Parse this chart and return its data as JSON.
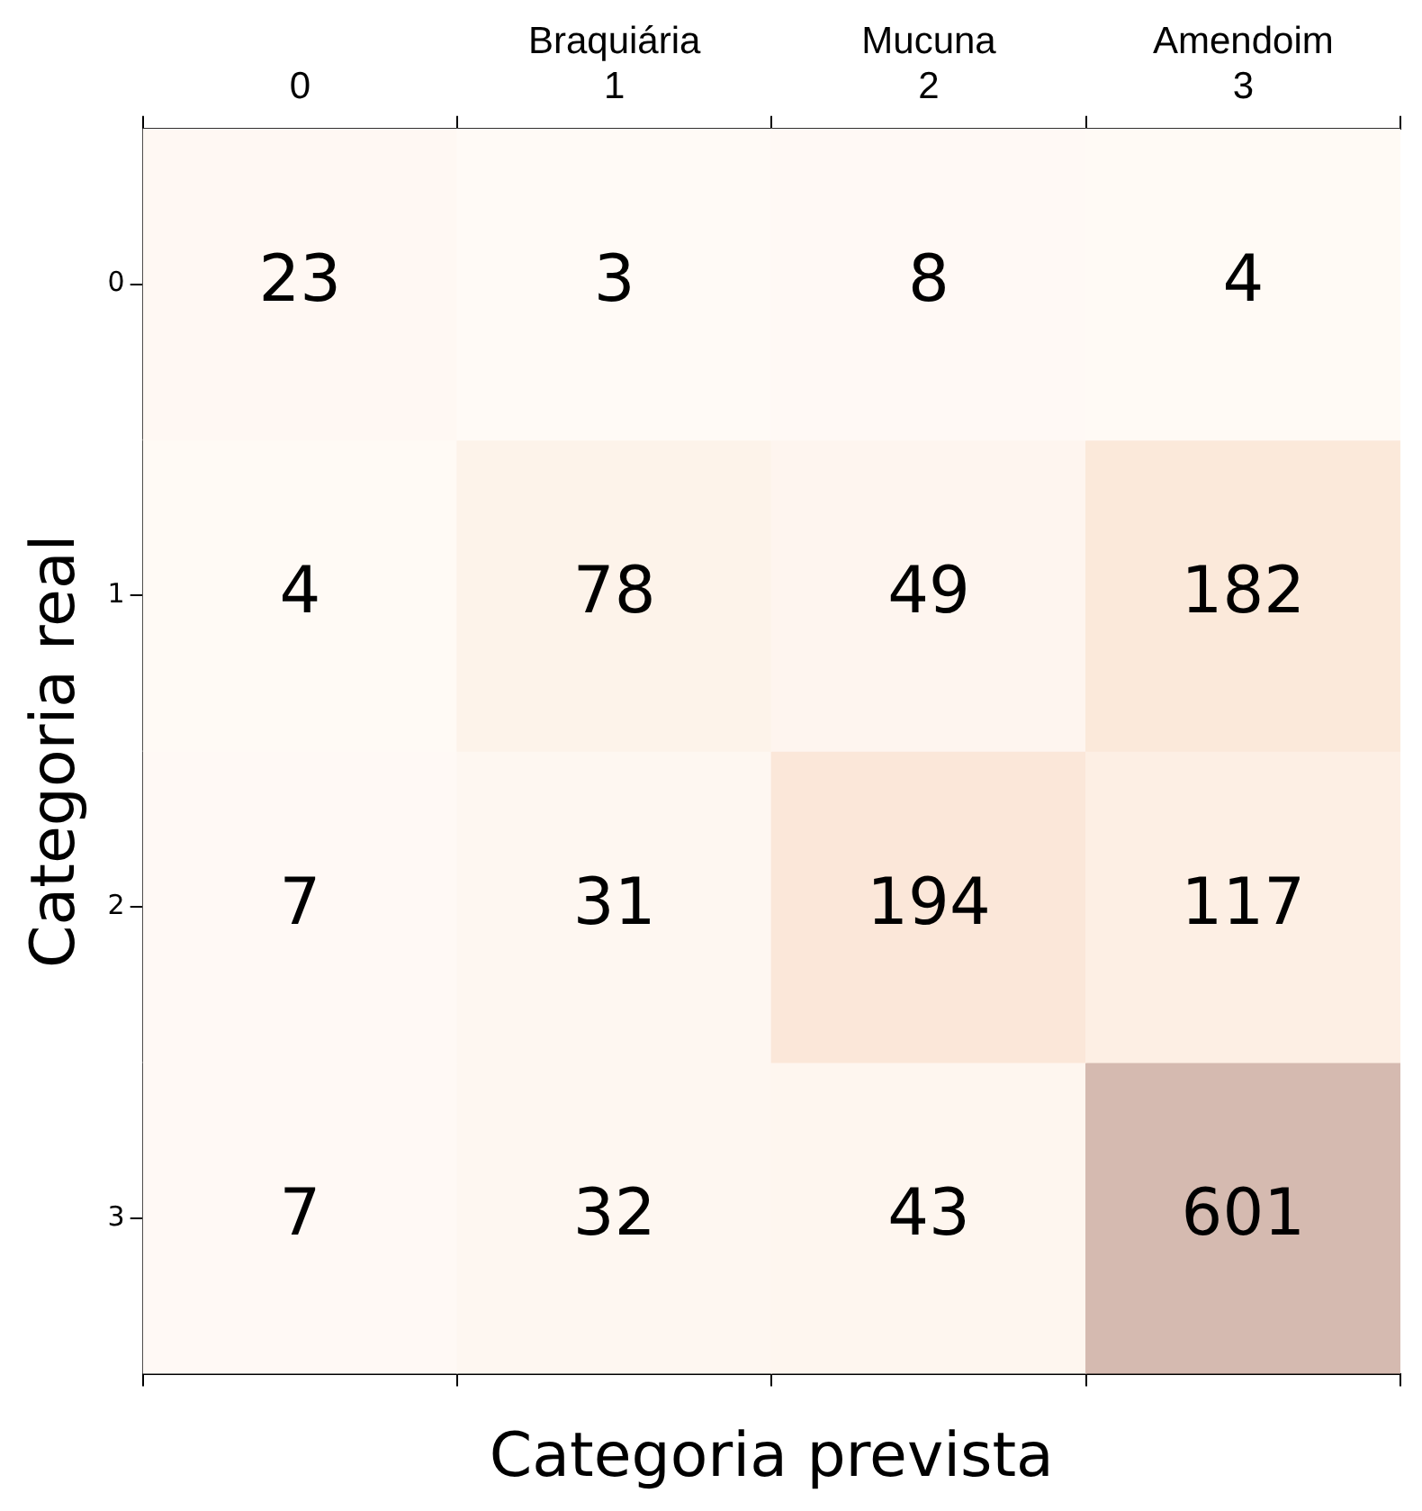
{
  "chart_data": {
    "type": "heatmap",
    "xlabel": "Categoria prevista",
    "ylabel": "Categoria real",
    "categories": [
      "0",
      "Braquiária\n1",
      "Mucuna\n2",
      "Amendoim\n3"
    ],
    "y_categories": [
      "0",
      "1",
      "2",
      "3"
    ],
    "cells": [
      [
        23,
        3,
        8,
        4
      ],
      [
        4,
        78,
        49,
        182
      ],
      [
        7,
        31,
        194,
        117
      ],
      [
        7,
        32,
        43,
        601
      ]
    ],
    "data_labels": true
  }
}
